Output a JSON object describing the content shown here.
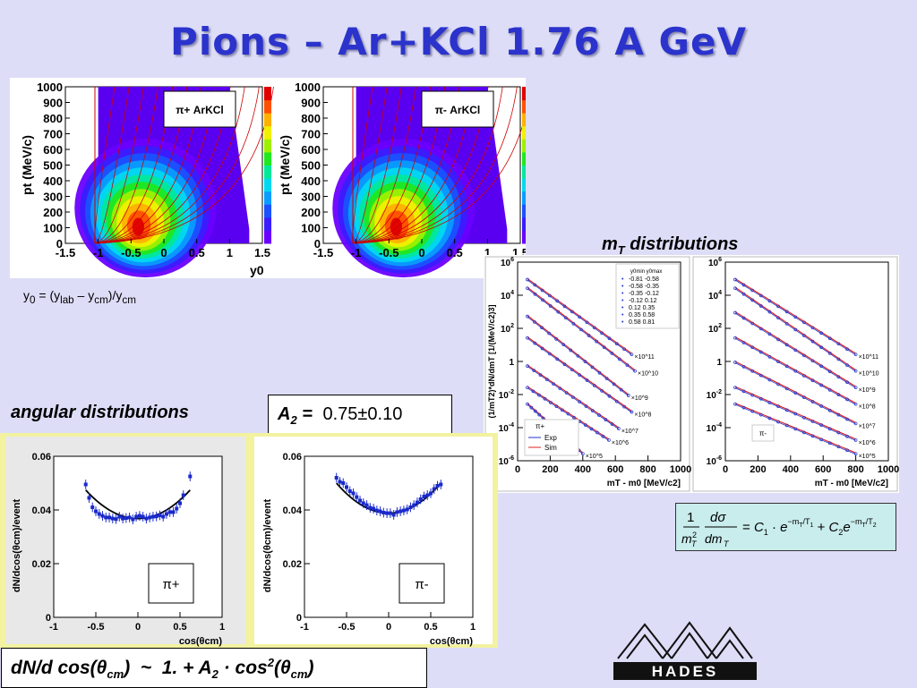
{
  "title": "Pions – Ar+KCl 1.76 A GeV",
  "heatmap_note": {
    "y0_def": "y0 = (ylab – ycm)/ycm"
  },
  "captions": {
    "mt": "mT distributions",
    "angular": "angular distributions"
  },
  "a2_box": {
    "label": "A2 =",
    "value": "0.75±0.10"
  },
  "angular_formula": "dN/d cos(θcm)  ~  1. + A2 · cos2(θcm)",
  "logo": {
    "text": "HADES"
  },
  "colors": {
    "title": "#2b33cc",
    "exp": "#2233cc",
    "sim": "#dd2222",
    "formula_bg": "#c9ecec"
  },
  "chart_data": [
    {
      "type": "heatmap",
      "id": "piplus-ptY",
      "legend": "π+ ArKCl",
      "xlabel": "y0",
      "ylabel": "pt (MeV/c)",
      "xlim": [
        -1.5,
        1.5
      ],
      "ylim": [
        0,
        1000
      ],
      "x_ticks": [
        "-1.5",
        "-1",
        "-0.5",
        "0",
        "0.5",
        "1",
        "1.5"
      ],
      "y_ticks": [
        "0",
        "100",
        "200",
        "300",
        "400",
        "500",
        "600",
        "700",
        "800",
        "900",
        "1000"
      ]
    },
    {
      "type": "heatmap",
      "id": "piminus-ptY",
      "legend": "π- ArKCl",
      "xlabel": "",
      "ylabel": "pt (MeV/c)",
      "xlim": [
        -1.5,
        1.5
      ],
      "ylim": [
        0,
        1000
      ],
      "x_ticks": [
        "-1.5",
        "-1",
        "-0.5",
        "0",
        "0.5",
        "1",
        "1.5"
      ],
      "y_ticks": [
        "0",
        "100",
        "200",
        "300",
        "400",
        "500",
        "600",
        "700",
        "800",
        "900",
        "1000"
      ]
    },
    {
      "type": "line",
      "id": "mt-piplus",
      "xlabel": "mT - m0 [MeV/c2]",
      "ylabel": "(1/mT2)*dN/dmT [1/(MeV/c2)3]",
      "yscale": "log",
      "ylim": [
        1e-06,
        1000000.0
      ],
      "xlim": [
        0,
        1000
      ],
      "x_ticks": [
        "0",
        "200",
        "400",
        "600",
        "800",
        "1000"
      ],
      "legend_title": [
        "y0min",
        "y0max"
      ],
      "rapidity_bins": [
        [
          "-0.81",
          "-0.58"
        ],
        [
          "-0.58",
          "-0.35"
        ],
        [
          "-0.35",
          "-0.12"
        ],
        [
          "-0.12",
          "0.12"
        ],
        [
          "0.12",
          "0.35"
        ],
        [
          "0.35",
          "0.58"
        ],
        [
          "0.58",
          "0.81"
        ]
      ],
      "multipliers": [
        "×10^11",
        "×10^10",
        "×10^9",
        "×10^8",
        "×10^7",
        "×10^6",
        "×10^5"
      ],
      "series_legend": [
        "π+",
        "Exp",
        "Sim"
      ],
      "series": [
        {
          "x0": 60,
          "y0": 100000.0,
          "x1": 700,
          "y1": 3.0
        },
        {
          "x0": 60,
          "y0": 30000.0,
          "x1": 720,
          "y1": 0.3
        },
        {
          "x0": 60,
          "y0": 600.0,
          "x1": 680,
          "y1": 0.01
        },
        {
          "x0": 60,
          "y0": 30.0,
          "x1": 700,
          "y1": 0.001
        },
        {
          "x0": 60,
          "y0": 0.6,
          "x1": 620,
          "y1": 0.0001
        },
        {
          "x0": 60,
          "y0": 0.03,
          "x1": 560,
          "y1": 2e-05
        },
        {
          "x0": 60,
          "y0": 0.003,
          "x1": 400,
          "y1": 3e-06
        }
      ]
    },
    {
      "type": "line",
      "id": "mt-piminus",
      "xlabel": "mT - m0 [MeV/c2]",
      "yscale": "log",
      "ylim": [
        1e-06,
        1000000.0
      ],
      "xlim": [
        0,
        1000
      ],
      "x_ticks": [
        "0",
        "200",
        "400",
        "600",
        "800",
        "1000"
      ],
      "multipliers": [
        "×10^11",
        "×10^10",
        "×10^9",
        "×10^8",
        "×10^7",
        "×10^6",
        "×10^5"
      ],
      "series_legend": [
        "π-"
      ],
      "series": [
        {
          "x0": 60,
          "y0": 100000.0,
          "x1": 800,
          "y1": 3.0
        },
        {
          "x0": 60,
          "y0": 30000.0,
          "x1": 800,
          "y1": 0.3
        },
        {
          "x0": 60,
          "y0": 1000.0,
          "x1": 800,
          "y1": 0.03
        },
        {
          "x0": 60,
          "y0": 30.0,
          "x1": 800,
          "y1": 0.003
        },
        {
          "x0": 60,
          "y0": 1.0,
          "x1": 800,
          "y1": 0.0002
        },
        {
          "x0": 60,
          "y0": 0.03,
          "x1": 800,
          "y1": 2e-05
        },
        {
          "x0": 60,
          "y0": 0.003,
          "x1": 800,
          "y1": 3e-06
        }
      ]
    },
    {
      "type": "scatter",
      "id": "ang-piplus",
      "legend": "π+",
      "xlabel": "cos(θcm)",
      "ylabel": "dN/dcos(θcm)/event",
      "xlim": [
        -1,
        1
      ],
      "ylim": [
        0,
        0.06
      ],
      "x_ticks": [
        "-1",
        "-0.5",
        "0",
        "0.5",
        "1"
      ],
      "y_ticks": [
        "0",
        "0.02",
        "0.04",
        "0.06"
      ],
      "fit_A2": 0.75,
      "fit_norm": 0.0368,
      "x": [
        -0.62,
        -0.58,
        -0.54,
        -0.5,
        -0.46,
        -0.42,
        -0.38,
        -0.34,
        -0.3,
        -0.26,
        -0.22,
        -0.18,
        -0.14,
        -0.1,
        -0.06,
        -0.02,
        0.02,
        0.06,
        0.1,
        0.14,
        0.18,
        0.22,
        0.26,
        0.3,
        0.34,
        0.38,
        0.42,
        0.46,
        0.5,
        0.54,
        0.62
      ],
      "y": [
        0.0495,
        0.0445,
        0.041,
        0.0395,
        0.0385,
        0.0378,
        0.0372,
        0.0372,
        0.0368,
        0.0366,
        0.0375,
        0.0368,
        0.037,
        0.0372,
        0.0365,
        0.0375,
        0.0378,
        0.0375,
        0.0368,
        0.0372,
        0.0375,
        0.0376,
        0.038,
        0.0375,
        0.0385,
        0.0392,
        0.0392,
        0.0405,
        0.0425,
        0.0455,
        0.0525
      ]
    },
    {
      "type": "scatter",
      "id": "ang-piminus",
      "legend": "π-",
      "xlabel": "cos(θcm)",
      "ylabel": "dN/dcos(θcm)/event",
      "xlim": [
        -1,
        1
      ],
      "ylim": [
        0,
        0.06
      ],
      "x_ticks": [
        "-1",
        "-0.5",
        "0",
        "0.5",
        "1"
      ],
      "y_ticks": [
        "0",
        "0.02",
        "0.04",
        "0.06"
      ],
      "fit_A2": 0.75,
      "fit_norm": 0.0388,
      "x": [
        -0.62,
        -0.58,
        -0.54,
        -0.5,
        -0.46,
        -0.42,
        -0.38,
        -0.34,
        -0.3,
        -0.26,
        -0.22,
        -0.18,
        -0.14,
        -0.1,
        -0.06,
        -0.02,
        0.02,
        0.06,
        0.1,
        0.14,
        0.18,
        0.22,
        0.26,
        0.3,
        0.34,
        0.38,
        0.42,
        0.46,
        0.5,
        0.54,
        0.58,
        0.62
      ],
      "y": [
        0.052,
        0.0505,
        0.05,
        0.0485,
        0.047,
        0.0462,
        0.0448,
        0.0435,
        0.0425,
        0.0418,
        0.0408,
        0.0405,
        0.0398,
        0.0395,
        0.039,
        0.0388,
        0.0388,
        0.0382,
        0.0392,
        0.0395,
        0.0398,
        0.0402,
        0.041,
        0.0418,
        0.0428,
        0.044,
        0.045,
        0.0455,
        0.0462,
        0.0478,
        0.049,
        0.0495
      ]
    }
  ]
}
